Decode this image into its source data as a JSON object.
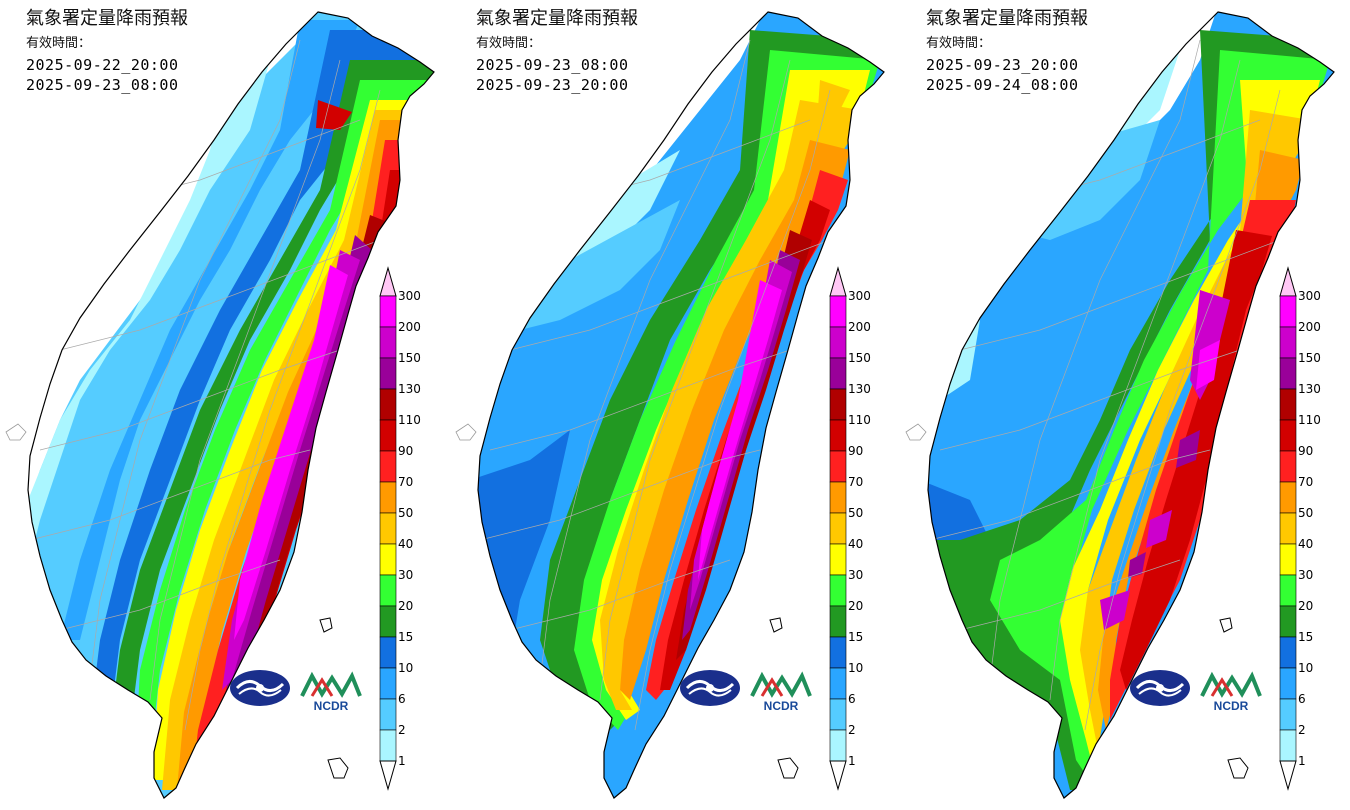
{
  "panels": [
    {
      "title": "氣象署定量降雨預報",
      "valid_label": "有效時間：",
      "time_start": "2025-09-22_20:00",
      "time_end": "2025-09-23_08:00"
    },
    {
      "title": "氣象署定量降雨預報",
      "valid_label": "有效時間：",
      "time_start": "2025-09-23_08:00",
      "time_end": "2025-09-23_20:00"
    },
    {
      "title": "氣象署定量降雨預報",
      "valid_label": "有效時間：",
      "time_start": "2025-09-23_20:00",
      "time_end": "2025-09-24_08:00"
    }
  ],
  "legend": {
    "labels": [
      "300",
      "200",
      "150",
      "130",
      "110",
      "90",
      "70",
      "50",
      "40",
      "30",
      "20",
      "15",
      "10",
      "6",
      "2",
      "1"
    ],
    "colors": {
      "over": "#ffc8f5",
      "c300": "#ff00ff",
      "c200": "#cc00cc",
      "c150": "#990099",
      "c130": "#b00000",
      "c110": "#d20000",
      "c90": "#ff2020",
      "c70": "#ff9a00",
      "c50": "#ffc800",
      "c40": "#ffff00",
      "c30": "#33ff33",
      "c20": "#229922",
      "c15": "#1270e0",
      "c10": "#2aa6ff",
      "c6": "#55ccff",
      "c2": "#aaf6ff",
      "under": "#ffffff"
    }
  },
  "logos": {
    "cwa": "cwa-emblem-icon",
    "ncdr": "NCDR"
  },
  "colors": {
    "sea": "#ffffff",
    "boundary": "#aaaaaa",
    "coast": "#000000"
  }
}
